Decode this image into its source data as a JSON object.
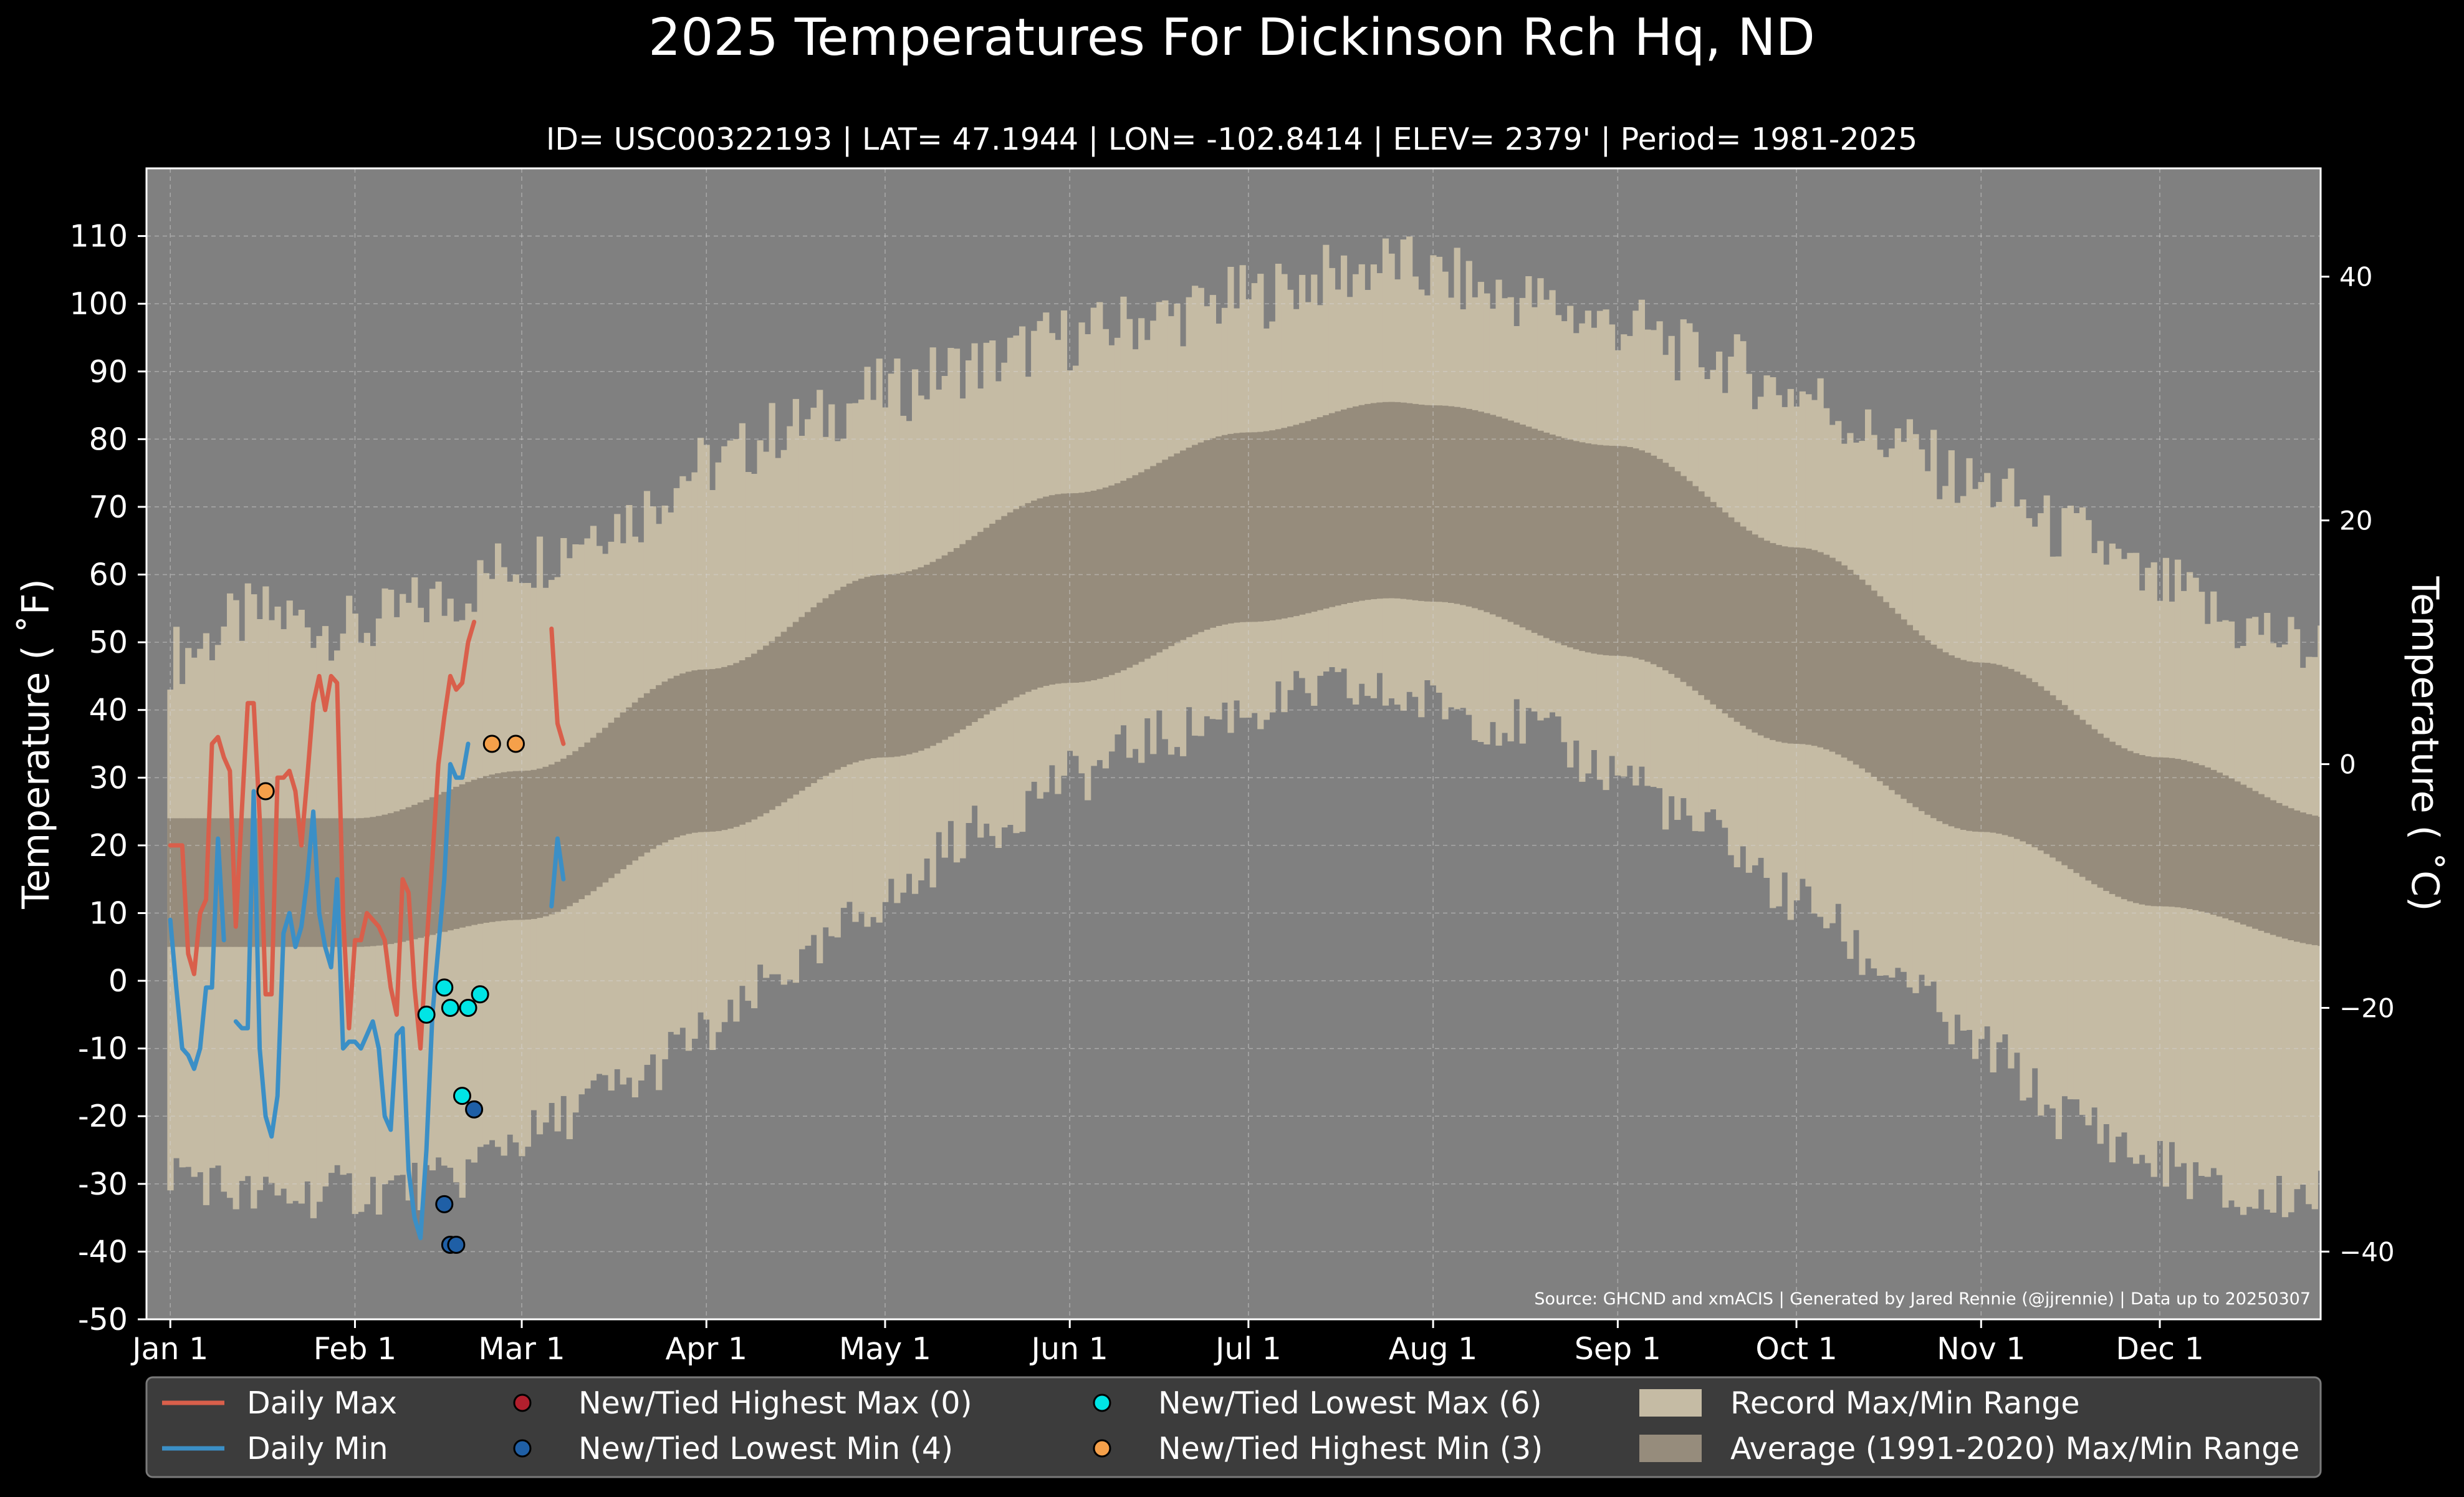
{
  "chart_data": {
    "type": "line",
    "title": "2025 Temperatures For Dickinson Rch Hq, ND",
    "subtitle": "ID= USC00322193 | LAT= 47.1944 | LON= -102.8414 | ELEV= 2379' | Period= 1981-2025",
    "ylabel": "Temperature ( ˚F)",
    "ylabel_right": "Temperature ( ˚C)",
    "source": "Source: GHCND and xmACIS | Generated by Jared Rennie (@jjrennie) | Data up to 20250307",
    "ylim": [
      -50,
      120
    ],
    "ylim_c": [
      -45.56,
      48.89
    ],
    "xlim": [
      -4,
      361
    ],
    "grid": true,
    "legend_position": "bottom",
    "x_ticks": [
      {
        "day": 0,
        "label": "Jan 1"
      },
      {
        "day": 31,
        "label": "Feb 1"
      },
      {
        "day": 59,
        "label": "Mar 1"
      },
      {
        "day": 90,
        "label": "Apr 1"
      },
      {
        "day": 120,
        "label": "May 1"
      },
      {
        "day": 151,
        "label": "Jun 1"
      },
      {
        "day": 181,
        "label": "Jul 1"
      },
      {
        "day": 212,
        "label": "Aug 1"
      },
      {
        "day": 243,
        "label": "Sep 1"
      },
      {
        "day": 273,
        "label": "Oct 1"
      },
      {
        "day": 304,
        "label": "Nov 1"
      },
      {
        "day": 334,
        "label": "Dec 1"
      }
    ],
    "y_ticks_f": [
      "110",
      "100",
      "90",
      "80",
      "70",
      "60",
      "50",
      "40",
      "30",
      "20",
      "10",
      "0",
      "-10",
      "-20",
      "-30",
      "-40",
      "-50"
    ],
    "y_ticks_c": [
      "40",
      "20",
      "0",
      "−20",
      "−40"
    ],
    "record_max_anchors": {
      "day": [
        0,
        15,
        31,
        45,
        59,
        75,
        90,
        105,
        120,
        135,
        151,
        166,
        181,
        195,
        205,
        212,
        225,
        243,
        258,
        273,
        288,
        304,
        319,
        334,
        349,
        360
      ],
      "value": [
        48,
        54,
        52,
        56,
        62,
        68,
        76,
        82,
        87,
        91,
        95,
        98,
        101,
        104,
        106,
        104,
        101,
        97,
        92,
        87,
        80,
        73,
        66,
        58,
        52,
        49
      ]
    },
    "record_min_anchors": {
      "day": [
        0,
        15,
        31,
        45,
        59,
        75,
        90,
        105,
        120,
        135,
        151,
        166,
        181,
        195,
        205,
        212,
        225,
        243,
        258,
        273,
        288,
        304,
        319,
        334,
        349,
        360
      ],
      "value": [
        -28,
        -32,
        -31,
        -30,
        -23,
        -16,
        -8,
        2,
        12,
        22,
        30,
        36,
        40,
        43,
        42,
        41,
        38,
        31,
        22,
        12,
        2,
        -10,
        -20,
        -27,
        -33,
        -31
      ]
    },
    "average_max_anchors": {
      "day": [
        0,
        31,
        59,
        90,
        120,
        151,
        181,
        205,
        212,
        243,
        273,
        304,
        334,
        364
      ],
      "value": [
        24,
        24,
        31,
        46,
        60,
        72,
        81,
        85.5,
        85,
        79,
        64,
        47,
        33,
        24
      ]
    },
    "average_min_anchors": {
      "day": [
        0,
        31,
        59,
        90,
        120,
        151,
        181,
        205,
        212,
        243,
        273,
        304,
        334,
        364
      ],
      "value": [
        5,
        5,
        9,
        22,
        33,
        44,
        53,
        56.5,
        56,
        48,
        35,
        22,
        11,
        5
      ]
    },
    "series": [
      {
        "name": "Daily Max",
        "color": "#d95f4b",
        "x": [
          0,
          1,
          2,
          3,
          4,
          5,
          6,
          7,
          8,
          9,
          10,
          11,
          12,
          13,
          14,
          15,
          16,
          17,
          18,
          19,
          20,
          21,
          22,
          23,
          24,
          25,
          26,
          27,
          28,
          29,
          30,
          31,
          32,
          33,
          34,
          35,
          36,
          37,
          38,
          39,
          40,
          41,
          42,
          43,
          44,
          45,
          46,
          47,
          48,
          49,
          50,
          51,
          52,
          53,
          54,
          55,
          56,
          57,
          58,
          59,
          64,
          65,
          66
        ],
        "y": [
          20,
          20,
          20,
          4,
          1,
          10,
          12,
          35,
          36,
          33,
          31,
          8,
          25,
          41,
          41,
          24,
          -2,
          -2,
          30,
          30,
          31,
          28,
          20,
          30,
          41,
          45,
          40,
          45,
          44,
          10,
          -7,
          6,
          6,
          10,
          9,
          8,
          6,
          -1,
          -5,
          15,
          13,
          -1,
          -10,
          5,
          18,
          32,
          39,
          45,
          43,
          44,
          50,
          53,
          null,
          null,
          null,
          null,
          null,
          null,
          null,
          null,
          52,
          38,
          35
        ]
      },
      {
        "name": "Daily Min",
        "color": "#3b8fc6",
        "x": [
          0,
          1,
          2,
          3,
          4,
          5,
          6,
          7,
          8,
          9,
          10,
          11,
          12,
          13,
          14,
          15,
          16,
          17,
          18,
          19,
          20,
          21,
          22,
          23,
          24,
          25,
          26,
          27,
          28,
          29,
          30,
          31,
          32,
          33,
          34,
          35,
          36,
          37,
          38,
          39,
          40,
          41,
          42,
          43,
          44,
          45,
          46,
          47,
          48,
          49,
          50,
          51,
          52,
          53,
          54,
          55,
          56,
          57,
          58,
          59,
          64,
          65,
          66
        ],
        "y": [
          9,
          -1,
          -10,
          -11,
          -13,
          -10,
          -1,
          -1,
          21,
          6,
          null,
          -6,
          -7,
          -7,
          28,
          -10,
          -20,
          -23,
          -17,
          7,
          10,
          5,
          8,
          15,
          25,
          10,
          5,
          2,
          15,
          -10,
          -9,
          -9,
          -10,
          -8,
          -6,
          -10,
          -20,
          -22,
          -8,
          -7,
          -28,
          -35,
          -38,
          -25,
          -5,
          5,
          15,
          32,
          30,
          30,
          35,
          null,
          null,
          null,
          null,
          null,
          null,
          null,
          null,
          null,
          11,
          21,
          15
        ]
      }
    ],
    "markers": [
      {
        "name": "New/Tied Highest Max (0)",
        "color": "#b21f2d",
        "x": [],
        "y": []
      },
      {
        "name": "New/Tied Lowest Min (4)",
        "color": "#1f5fa6",
        "x": [
          46,
          47,
          48,
          51
        ],
        "y": [
          -33,
          -39,
          -39,
          -19
        ]
      },
      {
        "name": "New/Tied Lowest Max (6)",
        "color": "#00e5e5",
        "x": [
          43,
          46,
          47,
          49,
          50,
          52
        ],
        "y": [
          -5,
          -1,
          -4,
          -17,
          -4,
          -2
        ]
      },
      {
        "name": "New/Tied Highest Min (3)",
        "color": "#f5a04a",
        "x": [
          16,
          54,
          58
        ],
        "y": [
          28,
          35,
          35
        ]
      }
    ],
    "ranges": [
      {
        "name": "Record Max/Min Range",
        "color": "#c5bba4"
      },
      {
        "name": "Average (1991-2020) Max/Min Range",
        "color": "#968c7c"
      }
    ]
  }
}
